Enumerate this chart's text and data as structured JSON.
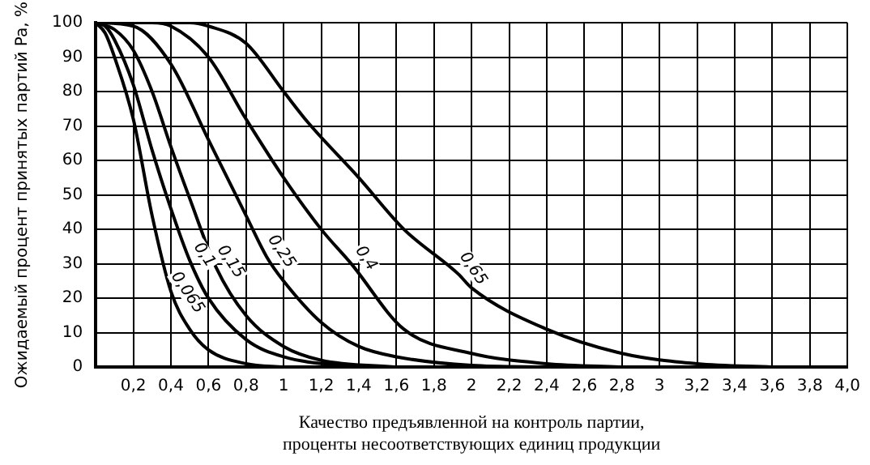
{
  "chart_data": {
    "type": "line",
    "xlabel": "Качество предъявленной на контроль партии,\nпроценты несоответствующих единиц продукции",
    "ylabel": "Ожидаемый процент принятых партий Pa, %",
    "xlim": [
      0,
      4
    ],
    "ylim": [
      0,
      100
    ],
    "xticks": [
      {
        "value": 0,
        "label": null
      },
      {
        "value": 0.2,
        "label": "0,2"
      },
      {
        "value": 0.4,
        "label": "0,4"
      },
      {
        "value": 0.6,
        "label": "0,6"
      },
      {
        "value": 0.8,
        "label": "0,8"
      },
      1,
      {
        "value": 1.2,
        "label": "1,2"
      },
      {
        "value": 1.4,
        "label": "1,4"
      },
      {
        "value": 1.6,
        "label": "1,6"
      },
      {
        "value": 1.8,
        "label": "1,8"
      },
      2,
      {
        "value": 2.2,
        "label": "2,2"
      },
      {
        "value": 2.4,
        "label": "2,4"
      },
      {
        "value": 2.6,
        "label": "2,6"
      },
      {
        "value": 2.8,
        "label": "2,8"
      },
      3,
      {
        "value": 3.2,
        "label": "3,2"
      },
      {
        "value": 3.4,
        "label": "3,4"
      },
      {
        "value": 3.6,
        "label": "3,6"
      },
      {
        "value": 3.8,
        "label": "3,8"
      },
      {
        "value": 4,
        "label": "4,0"
      }
    ],
    "yticks": [
      0,
      10,
      20,
      30,
      40,
      50,
      60,
      70,
      80,
      90,
      100
    ],
    "grid": true,
    "legend": false,
    "marker": "none",
    "line_style": "solid",
    "series": [
      {
        "color": "#000000",
        "x": [
          0,
          0.05,
          0.1,
          0.2,
          0.3,
          0.4,
          0.5,
          0.6,
          0.8,
          1.0
        ],
        "values": [
          100,
          97,
          90,
          72,
          44,
          22,
          11,
          5,
          1,
          0
        ]
      },
      {
        "color": "#000000",
        "x": [
          0,
          0.05,
          0.1,
          0.2,
          0.3,
          0.4,
          0.5,
          0.6,
          0.8,
          1.0,
          1.4
        ],
        "values": [
          100,
          99,
          95,
          82,
          63,
          46,
          31,
          20,
          8,
          3,
          0
        ]
      },
      {
        "color": "#000000",
        "x": [
          0,
          0.1,
          0.2,
          0.3,
          0.4,
          0.5,
          0.64,
          0.8,
          1.0,
          1.2,
          1.6
        ],
        "values": [
          100,
          98,
          92,
          80,
          64,
          49,
          29,
          15,
          6,
          2,
          0
        ]
      },
      {
        "color": "#000000",
        "x": [
          0,
          0.2,
          0.4,
          0.6,
          0.8,
          0.91,
          1.0,
          1.2,
          1.4,
          1.6,
          2.0,
          2.4
        ],
        "values": [
          100,
          99,
          88,
          66,
          44,
          32,
          25,
          13,
          6,
          3,
          0.5,
          0
        ]
      },
      {
        "color": "#000000",
        "x": [
          0,
          0.3,
          0.4,
          0.6,
          0.8,
          1.0,
          1.2,
          1.36,
          1.64,
          2.0,
          2.4,
          2.8
        ],
        "values": [
          100,
          100,
          99,
          90,
          72,
          55,
          40,
          30,
          11,
          4,
          1,
          0
        ]
      },
      {
        "color": "#000000",
        "x": [
          0,
          0.5,
          0.6,
          0.8,
          1.0,
          1.13,
          1.4,
          1.64,
          1.93,
          2.0,
          2.4,
          2.8,
          3.2,
          3.6
        ],
        "values": [
          100,
          100,
          99,
          94,
          80,
          71,
          55,
          40,
          27,
          23,
          11,
          4,
          1,
          0
        ]
      }
    ],
    "annotations": [
      {
        "text": "0,065",
        "x": 0.41,
        "y": 20
      },
      {
        "text": "0,1",
        "x": 0.5,
        "y": 31
      },
      {
        "text": "0,15",
        "x": 0.64,
        "y": 29
      },
      {
        "text": "0,25",
        "x": 0.91,
        "y": 32
      },
      {
        "text": "0,4",
        "x": 1.36,
        "y": 30
      },
      {
        "text": "0,65",
        "x": 1.93,
        "y": 27
      }
    ]
  }
}
